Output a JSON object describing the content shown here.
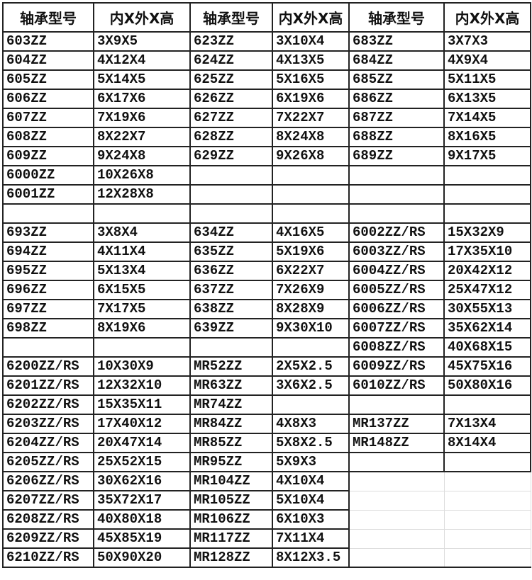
{
  "headers": [
    "轴承型号",
    "内X外X高",
    "轴承型号",
    "内X外X高",
    "轴承型号",
    "内X外X高"
  ],
  "rows": [
    [
      "603ZZ",
      "3X9X5",
      "623ZZ",
      "3X10X4",
      "683ZZ",
      "3X7X3"
    ],
    [
      "604ZZ",
      "4X12X4",
      "624ZZ",
      "4X13X5",
      "684ZZ",
      "4X9X4"
    ],
    [
      "605ZZ",
      "5X14X5",
      "625ZZ",
      "5X16X5",
      "685ZZ",
      "5X11X5"
    ],
    [
      "606ZZ",
      "6X17X6",
      "626ZZ",
      "6X19X6",
      "686ZZ",
      "6X13X5"
    ],
    [
      "607ZZ",
      "7X19X6",
      "627ZZ",
      "7X22X7",
      "687ZZ",
      "7X14X5"
    ],
    [
      "608ZZ",
      "8X22X7",
      "628ZZ",
      "8X24X8",
      "688ZZ",
      "8X16X5"
    ],
    [
      "609ZZ",
      "9X24X8",
      "629ZZ",
      "9X26X8",
      "689ZZ",
      "9X17X5"
    ],
    [
      "6000ZZ",
      "10X26X8",
      "",
      "",
      "",
      ""
    ],
    [
      "6001ZZ",
      "12X28X8",
      "",
      "",
      "",
      ""
    ],
    [
      "",
      "",
      "",
      "",
      "",
      ""
    ],
    [
      "693ZZ",
      "3X8X4",
      "634ZZ",
      "4X16X5",
      "6002ZZ/RS",
      "15X32X9"
    ],
    [
      "694ZZ",
      "4X11X4",
      "635ZZ",
      "5X19X6",
      "6003ZZ/RS",
      "17X35X10"
    ],
    [
      "695ZZ",
      "5X13X4",
      "636ZZ",
      "6X22X7",
      "6004ZZ/RS",
      "20X42X12"
    ],
    [
      "696ZZ",
      "6X15X5",
      "637ZZ",
      "7X26X9",
      "6005ZZ/RS",
      "25X47X12"
    ],
    [
      "697ZZ",
      "7X17X5",
      "638ZZ",
      "8X28X9",
      "6006ZZ/RS",
      "30X55X13"
    ],
    [
      "698ZZ",
      "8X19X6",
      "639ZZ",
      "9X30X10",
      "6007ZZ/RS",
      "35X62X14"
    ],
    [
      "",
      "",
      "",
      "",
      "6008ZZ/RS",
      "40X68X15"
    ],
    [
      "6200ZZ/RS",
      "10X30X9",
      "MR52ZZ",
      "2X5X2.5",
      "6009ZZ/RS",
      "45X75X16"
    ],
    [
      "6201ZZ/RS",
      "12X32X10",
      "MR63ZZ",
      "3X6X2.5",
      "6010ZZ/RS",
      "50X80X16"
    ],
    [
      "6202ZZ/RS",
      "15X35X11",
      "MR74ZZ",
      "",
      "",
      ""
    ],
    [
      "6203ZZ/RS",
      "17X40X12",
      "MR84ZZ",
      "4X8X3",
      "MR137ZZ",
      "7X13X4"
    ],
    [
      "6204ZZ/RS",
      "20X47X14",
      "MR85ZZ",
      "5X8X2.5",
      "MR148ZZ",
      "8X14X4"
    ],
    [
      "6205ZZ/RS",
      "25X52X15",
      "MR95ZZ",
      "5X9X3",
      "",
      ""
    ],
    [
      "6206ZZ/RS",
      "30X62X16",
      "MR104ZZ",
      "4X10X4",
      "",
      ""
    ],
    [
      "6207ZZ/RS",
      "35X72X17",
      "MR105ZZ",
      "5X10X4",
      "",
      ""
    ],
    [
      "6208ZZ/RS",
      "40X80X18",
      "MR106ZZ",
      "6X10X3",
      "",
      ""
    ],
    [
      "6209ZZ/RS",
      "45X85X19",
      "MR117ZZ",
      "7X11X4",
      "",
      ""
    ],
    [
      "6210ZZ/RS",
      "50X90X20",
      "MR128ZZ",
      "8X12X3.5",
      "",
      ""
    ]
  ]
}
